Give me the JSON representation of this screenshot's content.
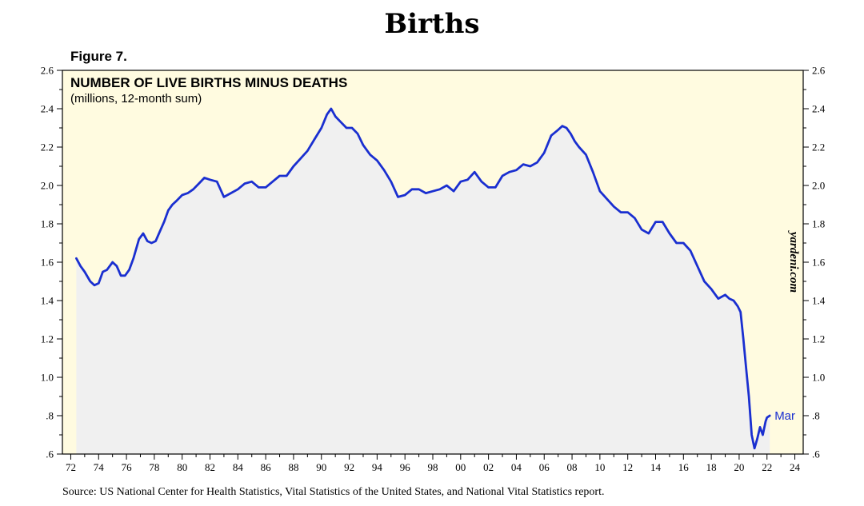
{
  "page": {
    "title": "Births",
    "figure_label": "Figure 7.",
    "source": "Source: US National Center for Health Statistics, Vital Statistics of the United States, and National Vital Statistics report."
  },
  "chart_data": {
    "type": "area",
    "title": "NUMBER OF LIVE BIRTHS MINUS DEATHS",
    "subtitle": "(millions, 12-month sum)",
    "watermark": "yardeni.com",
    "end_label": "Mar",
    "xlabel": "",
    "ylabel": "",
    "xlim": [
      1971.4,
      2024.6
    ],
    "ylim": [
      0.6,
      2.6
    ],
    "x_ticks": [
      72,
      74,
      76,
      78,
      80,
      82,
      84,
      86,
      88,
      90,
      92,
      94,
      96,
      98,
      0,
      2,
      4,
      6,
      8,
      10,
      12,
      14,
      16,
      18,
      20,
      22,
      24
    ],
    "x_tick_labels": [
      "72",
      "74",
      "76",
      "78",
      "80",
      "82",
      "84",
      "86",
      "88",
      "90",
      "92",
      "94",
      "96",
      "98",
      "00",
      "02",
      "04",
      "06",
      "08",
      "10",
      "12",
      "14",
      "16",
      "18",
      "20",
      "22",
      "24"
    ],
    "y_ticks": [
      0.6,
      0.8,
      1.0,
      1.2,
      1.4,
      1.6,
      1.8,
      2.0,
      2.2,
      2.4,
      2.6
    ],
    "y_tick_labels": [
      ".6",
      ".8",
      "1.0",
      "1.2",
      "1.4",
      "1.6",
      "1.8",
      "2.0",
      "2.2",
      "2.4",
      "2.6"
    ],
    "colors": {
      "line": "#1a2fd0",
      "plot_background": "#fffbe0",
      "area_fill": "#f0f0f0",
      "watermark": "#000000"
    },
    "series": [
      {
        "x": [
          1972.4,
          1972.7,
          1973.0,
          1973.4,
          1973.7,
          1974.0,
          1974.3,
          1974.6,
          1975.0,
          1975.3,
          1975.6,
          1975.9,
          1976.2,
          1976.5,
          1976.9,
          1977.2,
          1977.5,
          1977.8,
          1978.1,
          1978.4,
          1978.7,
          1979.0,
          1979.3,
          1979.6,
          1980.0,
          1980.4,
          1980.8,
          1981.2,
          1981.6,
          1982.0,
          1982.5,
          1983.0,
          1983.5,
          1984.0,
          1984.5,
          1985.0,
          1985.5,
          1986.0,
          1986.5,
          1987.0,
          1987.5,
          1988.0,
          1988.5,
          1989.0,
          1989.5,
          1990.0,
          1990.4,
          1990.7,
          1991.0,
          1991.4,
          1991.8,
          1992.2,
          1992.6,
          1993.0,
          1993.5,
          1994.0,
          1994.5,
          1995.0,
          1995.5,
          1996.0,
          1996.5,
          1997.0,
          1997.5,
          1998.0,
          1998.5,
          1999.0,
          1999.5,
          2000.0,
          2000.5,
          2001.0,
          2001.5,
          2002.0,
          2002.5,
          2003.0,
          2003.5,
          2004.0,
          2004.5,
          2005.0,
          2005.5,
          2006.0,
          2006.5,
          2007.0,
          2007.3,
          2007.6,
          2007.9,
          2008.2,
          2008.5,
          2009.0,
          2009.5,
          2010.0,
          2010.5,
          2011.0,
          2011.5,
          2012.0,
          2012.5,
          2013.0,
          2013.5,
          2014.0,
          2014.5,
          2015.0,
          2015.5,
          2016.0,
          2016.5,
          2017.0,
          2017.5,
          2018.0,
          2018.5,
          2019.0,
          2019.3,
          2019.6,
          2019.9,
          2020.1,
          2020.3,
          2020.5,
          2020.7,
          2020.9,
          2021.1,
          2021.3,
          2021.5,
          2021.7,
          2021.9,
          2022.0,
          2022.2
        ],
        "y": [
          1.62,
          1.58,
          1.55,
          1.5,
          1.48,
          1.49,
          1.55,
          1.56,
          1.6,
          1.58,
          1.53,
          1.53,
          1.56,
          1.62,
          1.72,
          1.75,
          1.71,
          1.7,
          1.71,
          1.76,
          1.81,
          1.87,
          1.9,
          1.92,
          1.95,
          1.96,
          1.98,
          2.01,
          2.04,
          2.03,
          2.02,
          1.94,
          1.96,
          1.98,
          2.01,
          2.02,
          1.99,
          1.99,
          2.02,
          2.05,
          2.05,
          2.1,
          2.14,
          2.18,
          2.24,
          2.3,
          2.37,
          2.4,
          2.36,
          2.33,
          2.3,
          2.3,
          2.27,
          2.21,
          2.16,
          2.13,
          2.08,
          2.02,
          1.94,
          1.95,
          1.98,
          1.98,
          1.96,
          1.97,
          1.98,
          2.0,
          1.97,
          2.02,
          2.03,
          2.07,
          2.02,
          1.99,
          1.99,
          2.05,
          2.07,
          2.08,
          2.11,
          2.1,
          2.12,
          2.17,
          2.26,
          2.29,
          2.31,
          2.3,
          2.27,
          2.23,
          2.2,
          2.16,
          2.07,
          1.97,
          1.93,
          1.89,
          1.86,
          1.86,
          1.83,
          1.77,
          1.75,
          1.81,
          1.81,
          1.75,
          1.7,
          1.7,
          1.66,
          1.58,
          1.5,
          1.46,
          1.41,
          1.43,
          1.41,
          1.4,
          1.37,
          1.34,
          1.2,
          1.05,
          0.9,
          0.7,
          0.63,
          0.68,
          0.74,
          0.7,
          0.77,
          0.79,
          0.8
        ]
      }
    ]
  }
}
